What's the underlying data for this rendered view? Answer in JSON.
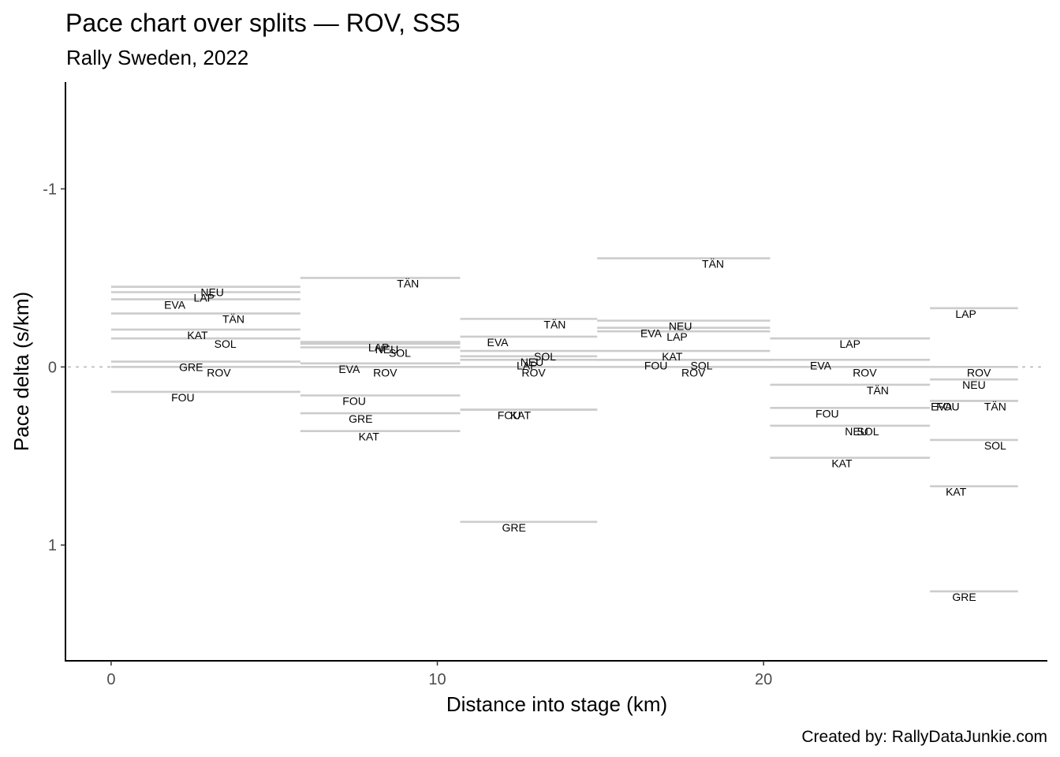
{
  "chart_data": {
    "type": "segment",
    "title": "Pace chart over splits — ROV, SS5",
    "subtitle": "Rally Sweden, 2022",
    "xlabel": "Distance into stage (km)",
    "ylabel": "Pace delta (s/km)",
    "caption": "Created by: RallyDataJunkie.com",
    "xlim": [
      -1.4,
      28.7
    ],
    "ylim": [
      1.65,
      -1.6
    ],
    "y_reversed": true,
    "x_ticks": [
      0,
      10,
      20
    ],
    "y_ticks": [
      -1,
      0,
      1
    ],
    "x_tick_labels": [
      "0",
      "10",
      "20"
    ],
    "y_tick_labels": [
      "-1",
      "0",
      "1"
    ],
    "reference_line": 0,
    "splits": [
      {
        "start": 0,
        "end": 5.8,
        "drivers": [
          {
            "code": "NEU",
            "pace": -0.45,
            "label_x": 3.1
          },
          {
            "code": "LAP",
            "pace": -0.42,
            "label_x": 2.85
          },
          {
            "code": "EVA",
            "pace": -0.38,
            "label_x": 1.95
          },
          {
            "code": "TÄN",
            "pace": -0.3,
            "label_x": 3.75
          },
          {
            "code": "KAT",
            "pace": -0.21,
            "label_x": 2.65
          },
          {
            "code": "SOL",
            "pace": -0.16,
            "label_x": 3.5
          },
          {
            "code": "GRE",
            "pace": -0.03,
            "label_x": 2.45
          },
          {
            "code": "ROV",
            "pace": 0.0,
            "label_x": 3.3
          },
          {
            "code": "FOU",
            "pace": 0.14,
            "label_x": 2.2
          }
        ]
      },
      {
        "start": 5.8,
        "end": 10.7,
        "drivers": [
          {
            "code": "TÄN",
            "pace": -0.5,
            "label_x": 9.1
          },
          {
            "code": "LAP",
            "pace": -0.14,
            "label_x": 8.2
          },
          {
            "code": "NEU",
            "pace": -0.13,
            "label_x": 8.45
          },
          {
            "code": "SOL",
            "pace": -0.11,
            "label_x": 8.85
          },
          {
            "code": "EVA",
            "pace": -0.02,
            "label_x": 7.3
          },
          {
            "code": "ROV",
            "pace": 0.0,
            "label_x": 8.4
          },
          {
            "code": "FOU",
            "pace": 0.16,
            "label_x": 7.45
          },
          {
            "code": "GRE",
            "pace": 0.26,
            "label_x": 7.65
          },
          {
            "code": "KAT",
            "pace": 0.36,
            "label_x": 7.9
          }
        ]
      },
      {
        "start": 10.7,
        "end": 14.9,
        "drivers": [
          {
            "code": "TÄN",
            "pace": -0.27,
            "label_x": 13.6
          },
          {
            "code": "EVA",
            "pace": -0.17,
            "label_x": 11.85
          },
          {
            "code": "SOL",
            "pace": -0.09,
            "label_x": 13.3
          },
          {
            "code": "NEU",
            "pace": -0.06,
            "label_x": 12.9
          },
          {
            "code": "LAP",
            "pace": -0.04,
            "label_x": 12.75
          },
          {
            "code": "ROV",
            "pace": 0.0,
            "label_x": 12.95
          },
          {
            "code": "FOU",
            "pace": 0.24,
            "label_x": 12.2
          },
          {
            "code": "KAT",
            "pace": 0.24,
            "label_x": 12.55
          },
          {
            "code": "GRE",
            "pace": 0.87,
            "label_x": 12.35
          }
        ]
      },
      {
        "start": 14.9,
        "end": 20.2,
        "drivers": [
          {
            "code": "TÄN",
            "pace": -0.61,
            "label_x": 18.45
          },
          {
            "code": "NEU",
            "pace": -0.26,
            "label_x": 17.45
          },
          {
            "code": "EVA",
            "pace": -0.22,
            "label_x": 16.55
          },
          {
            "code": "LAP",
            "pace": -0.2,
            "label_x": 17.35
          },
          {
            "code": "KAT",
            "pace": -0.09,
            "label_x": 17.2
          },
          {
            "code": "SOL",
            "pace": -0.04,
            "label_x": 18.1
          },
          {
            "code": "FOU",
            "pace": -0.04,
            "label_x": 16.7
          },
          {
            "code": "ROV",
            "pace": 0.0,
            "label_x": 17.85
          }
        ]
      },
      {
        "start": 20.2,
        "end": 25.1,
        "drivers": [
          {
            "code": "LAP",
            "pace": -0.16,
            "label_x": 22.65
          },
          {
            "code": "EVA",
            "pace": -0.04,
            "label_x": 21.75
          },
          {
            "code": "ROV",
            "pace": 0.0,
            "label_x": 23.1
          },
          {
            "code": "TÄN",
            "pace": 0.1,
            "label_x": 23.5
          },
          {
            "code": "FOU",
            "pace": 0.23,
            "label_x": 21.95
          },
          {
            "code": "NEU",
            "pace": 0.33,
            "label_x": 22.85
          },
          {
            "code": "SOL",
            "pace": 0.33,
            "label_x": 23.2
          },
          {
            "code": "KAT",
            "pace": 0.51,
            "label_x": 22.4
          }
        ]
      },
      {
        "start": 25.1,
        "end": 27.8,
        "drivers": [
          {
            "code": "LAP",
            "pace": -0.33,
            "label_x": 26.2
          },
          {
            "code": "ROV",
            "pace": 0.0,
            "label_x": 26.6
          },
          {
            "code": "NEU",
            "pace": 0.07,
            "label_x": 26.45
          },
          {
            "code": "TÄN",
            "pace": 0.19,
            "label_x": 27.1
          },
          {
            "code": "EVA",
            "pace": 0.19,
            "label_x": 25.45
          },
          {
            "code": "FOU",
            "pace": 0.19,
            "label_x": 25.65
          },
          {
            "code": "SOL",
            "pace": 0.41,
            "label_x": 27.1
          },
          {
            "code": "KAT",
            "pace": 0.67,
            "label_x": 25.9
          },
          {
            "code": "GRE",
            "pace": 1.26,
            "label_x": 26.15
          }
        ]
      }
    ]
  }
}
